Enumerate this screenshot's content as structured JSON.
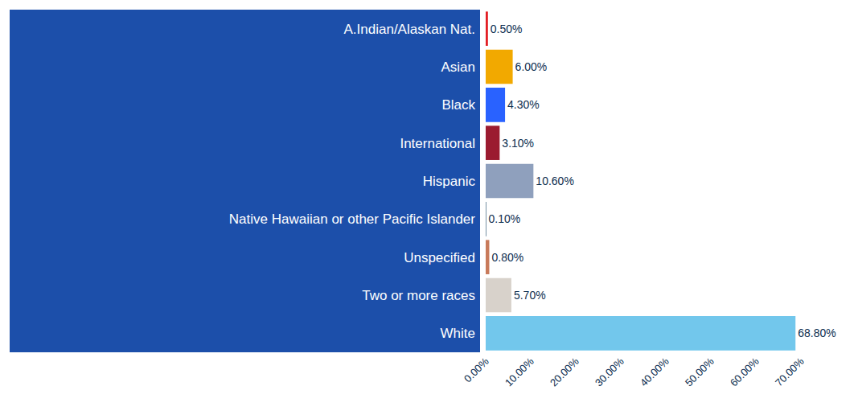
{
  "chart_data": {
    "type": "bar",
    "orientation": "horizontal",
    "categories": [
      "A.Indian/Alaskan Nat.",
      "Asian",
      "Black",
      "International",
      "Hispanic",
      "Native Hawaiian or other Pacific Islander",
      "Unspecified",
      "Two or more races",
      "White"
    ],
    "values": [
      0.5,
      6.0,
      4.3,
      3.1,
      10.6,
      0.1,
      0.8,
      5.7,
      68.8
    ],
    "value_labels": [
      "0.50%",
      "6.00%",
      "4.30%",
      "3.10%",
      "10.60%",
      "0.10%",
      "0.80%",
      "5.70%",
      "68.80%"
    ],
    "colors": [
      "#e31e24",
      "#f2a900",
      "#2962ff",
      "#9b1b30",
      "#8fa0bd",
      "#0b3a5c",
      "#c87a5a",
      "#d8d2cb",
      "#72c7ec"
    ],
    "xlim": [
      0,
      70
    ],
    "xticks": [
      {
        "value": 0,
        "label": "0.00%"
      },
      {
        "value": 10,
        "label": "10.00%"
      },
      {
        "value": 20,
        "label": "20.00%"
      },
      {
        "value": 30,
        "label": "30.00%"
      },
      {
        "value": 40,
        "label": "40.00%"
      },
      {
        "value": 50,
        "label": "50.00%"
      },
      {
        "value": 60,
        "label": "60.00%"
      },
      {
        "value": 70,
        "label": "70.00%"
      }
    ],
    "grid": false,
    "data_labels": true
  }
}
